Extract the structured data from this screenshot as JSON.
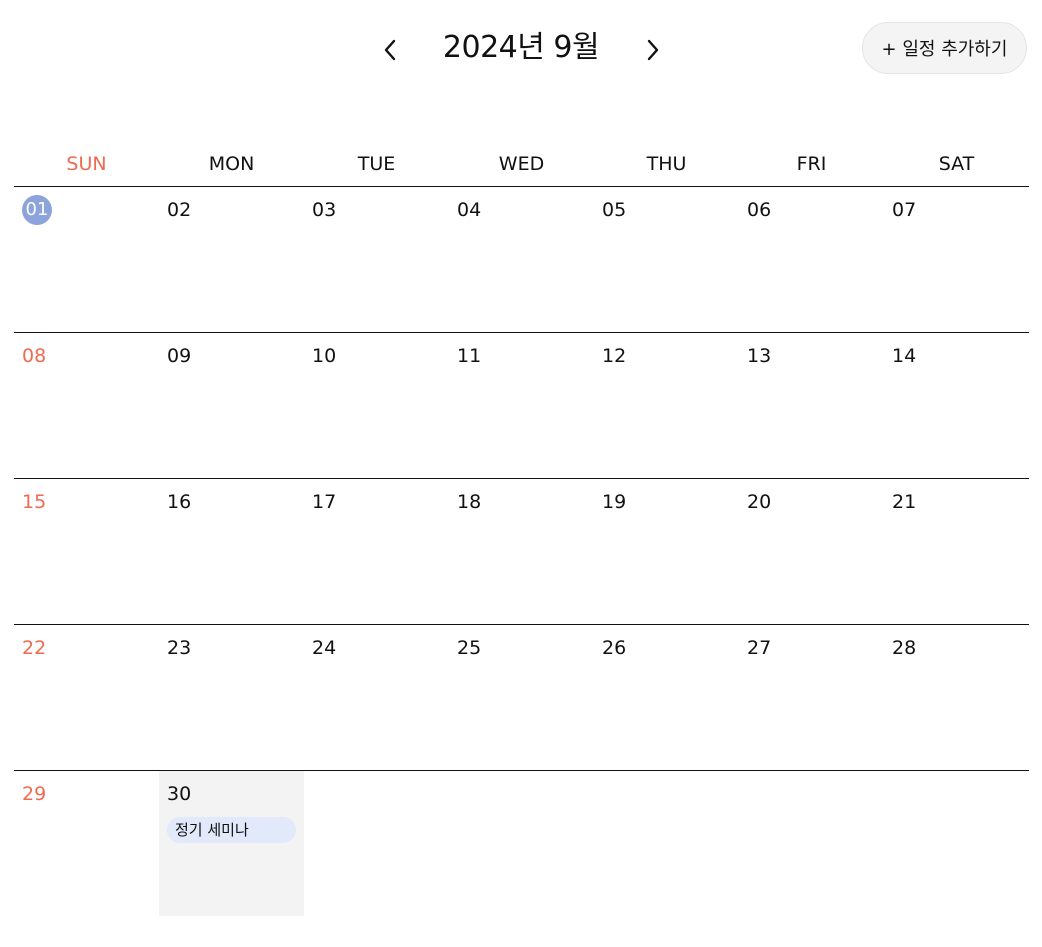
{
  "header": {
    "title": "2024년 9월",
    "prev_icon": "chevron-left-icon",
    "next_icon": "chevron-right-icon",
    "add_button_label": "+ 일정 추가하기"
  },
  "colors": {
    "sunday": "#ef6a4f",
    "today_circle": "#8ca3dc",
    "selected_day_bg": "#f3f3f3",
    "event_bg": "#e2e9fb"
  },
  "weekdays": [
    "SUN",
    "MON",
    "TUE",
    "WED",
    "THU",
    "FRI",
    "SAT"
  ],
  "weeks": [
    [
      "01",
      "02",
      "03",
      "04",
      "05",
      "06",
      "07"
    ],
    [
      "08",
      "09",
      "10",
      "11",
      "12",
      "13",
      "14"
    ],
    [
      "15",
      "16",
      "17",
      "18",
      "19",
      "20",
      "21"
    ],
    [
      "22",
      "23",
      "24",
      "25",
      "26",
      "27",
      "28"
    ],
    [
      "29",
      "30",
      "",
      "",
      "",
      "",
      ""
    ]
  ],
  "today": "01",
  "selected_day": "30",
  "events": [
    {
      "day": "30",
      "title": "정기 세미나"
    }
  ]
}
